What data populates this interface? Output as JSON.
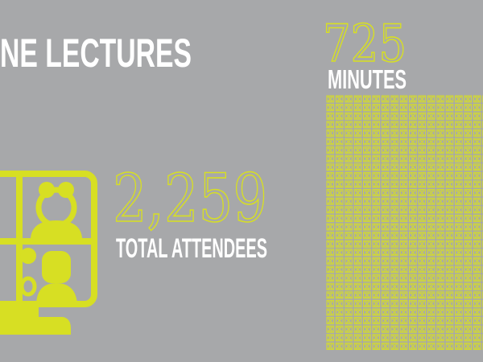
{
  "header": {
    "title": "NE LECTURES"
  },
  "stats": [
    {
      "value": "2,259",
      "label": "TOTAL ATTENDEES"
    },
    {
      "value": "725",
      "label": "MINUTES"
    }
  ]
}
